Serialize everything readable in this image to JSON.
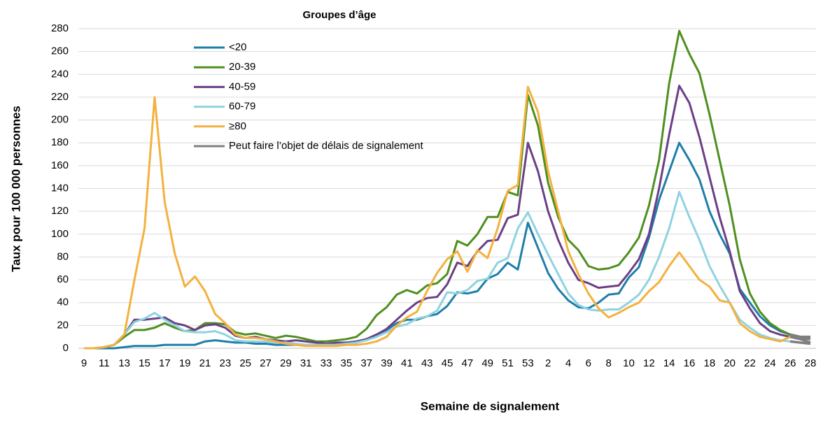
{
  "chart_data": {
    "type": "line",
    "title": "Groupes d’âge",
    "y_label": "Taux pour 100 000 personnes",
    "x_label": "Semaine de signalement",
    "categories": [
      9,
      null,
      11,
      null,
      13,
      null,
      15,
      null,
      17,
      null,
      19,
      null,
      21,
      null,
      23,
      null,
      25,
      null,
      27,
      null,
      29,
      null,
      31,
      null,
      33,
      null,
      35,
      null,
      37,
      null,
      39,
      null,
      41,
      null,
      43,
      null,
      45,
      null,
      47,
      null,
      49,
      null,
      51,
      null,
      53,
      null,
      2,
      null,
      4,
      null,
      6,
      null,
      8,
      null,
      10,
      null,
      12,
      null,
      14,
      null,
      16,
      null,
      18,
      null,
      20,
      null,
      22,
      null,
      24,
      null,
      26,
      null,
      28
    ],
    "ylim": [
      0,
      280
    ],
    "yticks": [
      0,
      20,
      40,
      60,
      80,
      100,
      120,
      140,
      160,
      180,
      200,
      220,
      240,
      260,
      280
    ],
    "grid": true,
    "series": [
      {
        "name": "<20",
        "color": "#1f7ea8",
        "values": [
          0,
          0,
          0,
          0,
          1,
          2,
          2,
          2,
          3,
          3,
          3,
          3,
          6,
          7,
          6,
          5,
          5,
          4,
          4,
          3,
          3,
          3,
          3,
          3,
          3,
          3,
          4,
          5,
          8,
          12,
          16,
          22,
          25,
          25,
          28,
          30,
          37,
          49,
          48,
          50,
          61,
          65,
          75,
          69,
          110,
          88,
          66,
          52,
          42,
          36,
          35,
          40,
          47,
          48,
          62,
          71,
          97,
          130,
          155,
          180,
          165,
          148,
          120,
          100,
          83,
          52,
          40,
          28,
          20,
          15,
          12,
          10,
          9
        ]
      },
      {
        "name": "20-39",
        "color": "#4e8f1e",
        "values": [
          0,
          0,
          1,
          3,
          10,
          16,
          16,
          18,
          22,
          18,
          15,
          16,
          22,
          22,
          21,
          14,
          12,
          13,
          11,
          9,
          11,
          10,
          8,
          6,
          6,
          7,
          8,
          10,
          17,
          29,
          36,
          47,
          51,
          48,
          55,
          57,
          65,
          94,
          90,
          100,
          115,
          115,
          137,
          134,
          222,
          195,
          145,
          115,
          95,
          86,
          72,
          69,
          70,
          73,
          84,
          97,
          125,
          165,
          232,
          278,
          258,
          241,
          205,
          165,
          125,
          78,
          48,
          32,
          22,
          16,
          12,
          10,
          10
        ]
      },
      {
        "name": "40-59",
        "color": "#6b3f86",
        "values": [
          0,
          0,
          1,
          3,
          12,
          25,
          25,
          26,
          27,
          22,
          20,
          16,
          20,
          21,
          18,
          11,
          9,
          10,
          8,
          7,
          6,
          7,
          6,
          5,
          4,
          5,
          5,
          6,
          8,
          12,
          17,
          25,
          33,
          40,
          44,
          45,
          56,
          75,
          72,
          85,
          94,
          95,
          114,
          117,
          180,
          155,
          120,
          95,
          75,
          60,
          57,
          53,
          54,
          55,
          66,
          78,
          100,
          140,
          187,
          230,
          215,
          185,
          150,
          115,
          85,
          50,
          35,
          22,
          15,
          12,
          10,
          9,
          8
        ]
      },
      {
        "name": "60-79",
        "color": "#8fd3e0",
        "values": [
          0,
          0,
          1,
          3,
          12,
          23,
          26,
          31,
          25,
          20,
          15,
          14,
          14,
          15,
          12,
          7,
          6,
          6,
          6,
          5,
          5,
          4,
          3,
          3,
          3,
          3,
          4,
          5,
          7,
          10,
          14,
          19,
          21,
          26,
          28,
          33,
          49,
          48,
          51,
          59,
          61,
          75,
          79,
          105,
          119,
          100,
          82,
          65,
          48,
          38,
          34,
          33,
          34,
          34,
          40,
          47,
          60,
          80,
          105,
          137,
          115,
          95,
          72,
          55,
          40,
          25,
          18,
          12,
          9,
          7,
          6,
          5,
          4
        ]
      },
      {
        "name": "≥80",
        "color": "#f4b13e",
        "values": [
          0,
          0,
          1,
          3,
          12,
          60,
          105,
          220,
          128,
          83,
          54,
          63,
          50,
          30,
          22,
          12,
          9,
          9,
          8,
          6,
          4,
          3,
          2,
          2,
          2,
          2,
          3,
          3,
          4,
          6,
          10,
          20,
          27,
          32,
          50,
          66,
          78,
          85,
          67,
          86,
          79,
          105,
          138,
          143,
          229,
          207,
          155,
          120,
          85,
          65,
          48,
          35,
          27,
          31,
          36,
          40,
          50,
          58,
          72,
          84,
          72,
          60,
          54,
          42,
          40,
          22,
          15,
          10,
          8,
          6,
          10,
          8,
          5
        ]
      }
    ],
    "delay": {
      "name": "Peut faire l’objet de délais de signalement",
      "color": "#7f7f7f",
      "from_index": 70
    }
  }
}
